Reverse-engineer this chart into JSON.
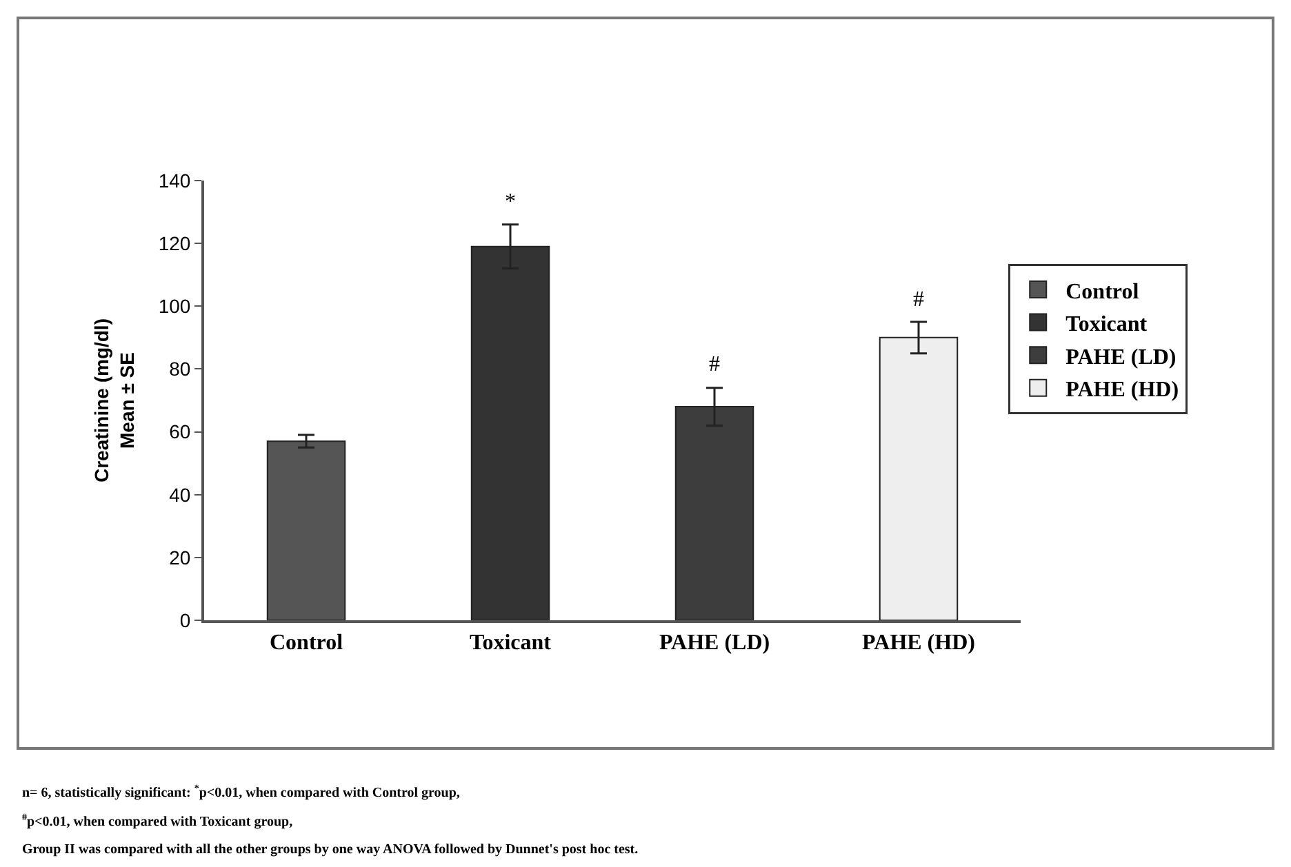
{
  "chart_data": {
    "type": "bar",
    "ylabel": "Creatinine (mg/dl)\nMean ± SE",
    "categories": [
      "Control",
      "Toxicant",
      "PAHE (LD)",
      "PAHE (HD)"
    ],
    "series": [
      {
        "name": "Control",
        "color": "#555555",
        "values": [
          57,
          null,
          null,
          null
        ],
        "errors": [
          2,
          null,
          null,
          null
        ]
      },
      {
        "name": "Toxicant",
        "color": "#333333",
        "values": [
          null,
          119,
          null,
          null
        ],
        "errors": [
          null,
          7,
          null,
          null
        ]
      },
      {
        "name": "PAHE (LD)",
        "color": "#3d3d3d",
        "values": [
          null,
          null,
          68,
          null
        ],
        "errors": [
          null,
          null,
          6,
          null
        ]
      },
      {
        "name": "PAHE (HD)",
        "color": "#eeeeee",
        "values": [
          null,
          null,
          null,
          90
        ],
        "errors": [
          null,
          null,
          null,
          5
        ]
      }
    ],
    "ylim": [
      0,
      140
    ],
    "yticks": [
      0,
      20,
      40,
      60,
      80,
      100,
      120,
      140
    ],
    "grid": false,
    "legend": "right",
    "annotations": [
      {
        "text": "*",
        "x": "Toxicant",
        "y": 126
      },
      {
        "text": "#",
        "x": "PAHE (LD)",
        "y": 74
      },
      {
        "text": "#",
        "x": "PAHE (HD)",
        "y": 95
      },
      "n= 6, statistically significant: $^{*}$p<0.01, when compared with Control group,",
      "$^{#}$p<0.01, when compared with Toxicant group,",
      "Group II was compared with all the other groups by one way ANOVA followed by Dunnet's post hoc test."
    ]
  }
}
